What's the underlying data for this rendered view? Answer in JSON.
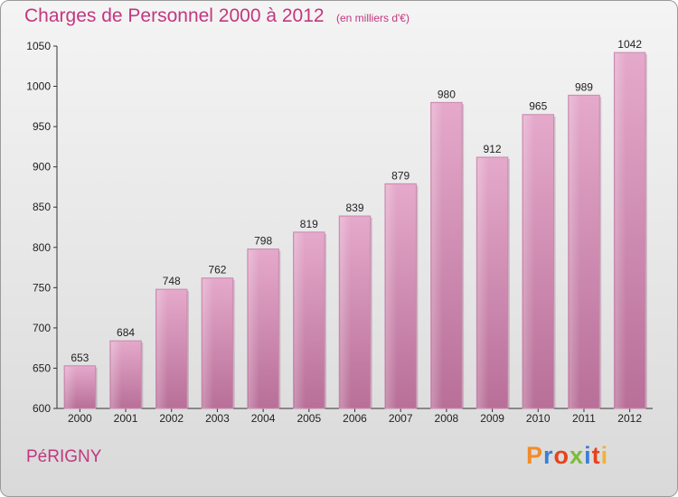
{
  "header": {
    "title": "Charges de Personnel 2000 à 2012",
    "subtitle": "(en milliers d'€)"
  },
  "footer": {
    "commune": "PéRIGNY",
    "brand": "Proxiti",
    "brand_colors": [
      "#f28c28",
      "#3a7fd5",
      "#e8421c",
      "#7cbd3a",
      "#3a7fd5",
      "#e8421c",
      "#f2b233"
    ]
  },
  "chart_data": {
    "type": "bar",
    "categories": [
      "2000",
      "2001",
      "2002",
      "2003",
      "2004",
      "2005",
      "2006",
      "2007",
      "2008",
      "2009",
      "2010",
      "2011",
      "2012"
    ],
    "values": [
      653,
      684,
      748,
      762,
      798,
      819,
      839,
      879,
      980,
      912,
      965,
      989,
      1042
    ],
    "ylim": [
      600,
      1050
    ],
    "yticks": [
      600,
      650,
      700,
      750,
      800,
      850,
      900,
      950,
      1000,
      1050
    ],
    "grid": false,
    "bar_color": "#d98fb9"
  }
}
